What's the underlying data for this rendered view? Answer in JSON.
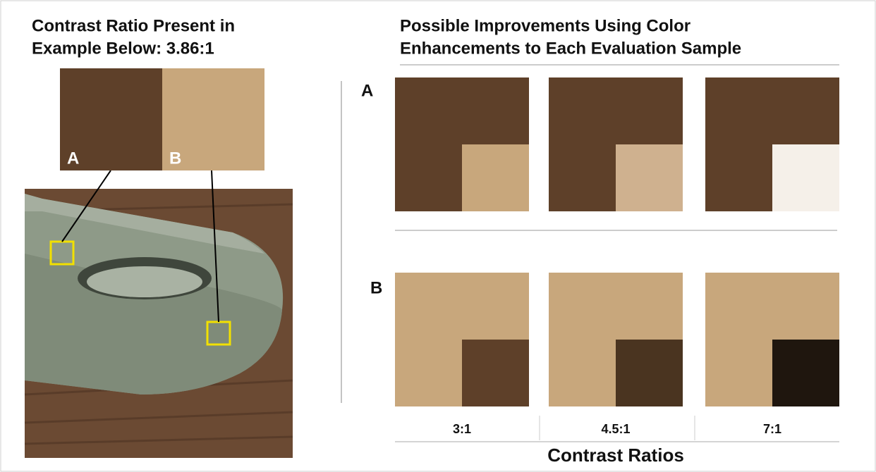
{
  "left": {
    "title": [
      "Contrast Ratio Present in",
      "Example Below: 3.86:1"
    ],
    "swatches": [
      {
        "label": "A",
        "color": "#5e4029"
      },
      {
        "label": "B",
        "color": "#c8a77c"
      }
    ]
  },
  "right": {
    "title": [
      "Possible Improvements Using Color",
      "Enhancements to Each Evaluation Sample"
    ],
    "rows": [
      {
        "label": "A",
        "background": "#5e4029",
        "samples": [
          "#c8a77c",
          "#cfb18f",
          "#f5f0e9"
        ]
      },
      {
        "label": "B",
        "background": "#c8a77c",
        "samples": [
          "#5e4029",
          "#4a3420",
          "#1f160e"
        ]
      }
    ],
    "columns": [
      "3:1",
      "4.5:1",
      "7:1"
    ],
    "axis_title": "Contrast Ratios"
  }
}
